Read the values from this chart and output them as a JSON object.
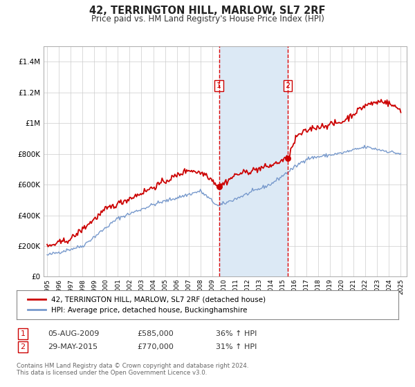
{
  "title": "42, TERRINGTON HILL, MARLOW, SL7 2RF",
  "subtitle": "Price paid vs. HM Land Registry's House Price Index (HPI)",
  "background_color": "#ffffff",
  "plot_bg_color": "#ffffff",
  "grid_color": "#cccccc",
  "sale1": {
    "date": 2009.587,
    "price": 585000,
    "label": "1",
    "vline_color": "#dd0000"
  },
  "sale2": {
    "date": 2015.408,
    "price": 770000,
    "label": "2",
    "vline_color": "#dd0000"
  },
  "shade_color": "#dce9f5",
  "legend1_label": "42, TERRINGTON HILL, MARLOW, SL7 2RF (detached house)",
  "legend2_label": "HPI: Average price, detached house, Buckinghamshire",
  "legend1_color": "#cc0000",
  "legend2_color": "#7799cc",
  "table_row1": [
    "1",
    "05-AUG-2009",
    "£585,000",
    "36% ↑ HPI"
  ],
  "table_row2": [
    "2",
    "29-MAY-2015",
    "£770,000",
    "31% ↑ HPI"
  ],
  "footer_line1": "Contains HM Land Registry data © Crown copyright and database right 2024.",
  "footer_line2": "This data is licensed under the Open Government Licence v3.0.",
  "ylim": [
    0,
    1500000
  ],
  "xlim_start": 1994.7,
  "xlim_end": 2025.5,
  "yticks": [
    0,
    200000,
    400000,
    600000,
    800000,
    1000000,
    1200000,
    1400000
  ],
  "ytick_labels": [
    "£0",
    "£200K",
    "£400K",
    "£600K",
    "£800K",
    "£1M",
    "£1.2M",
    "£1.4M"
  ]
}
